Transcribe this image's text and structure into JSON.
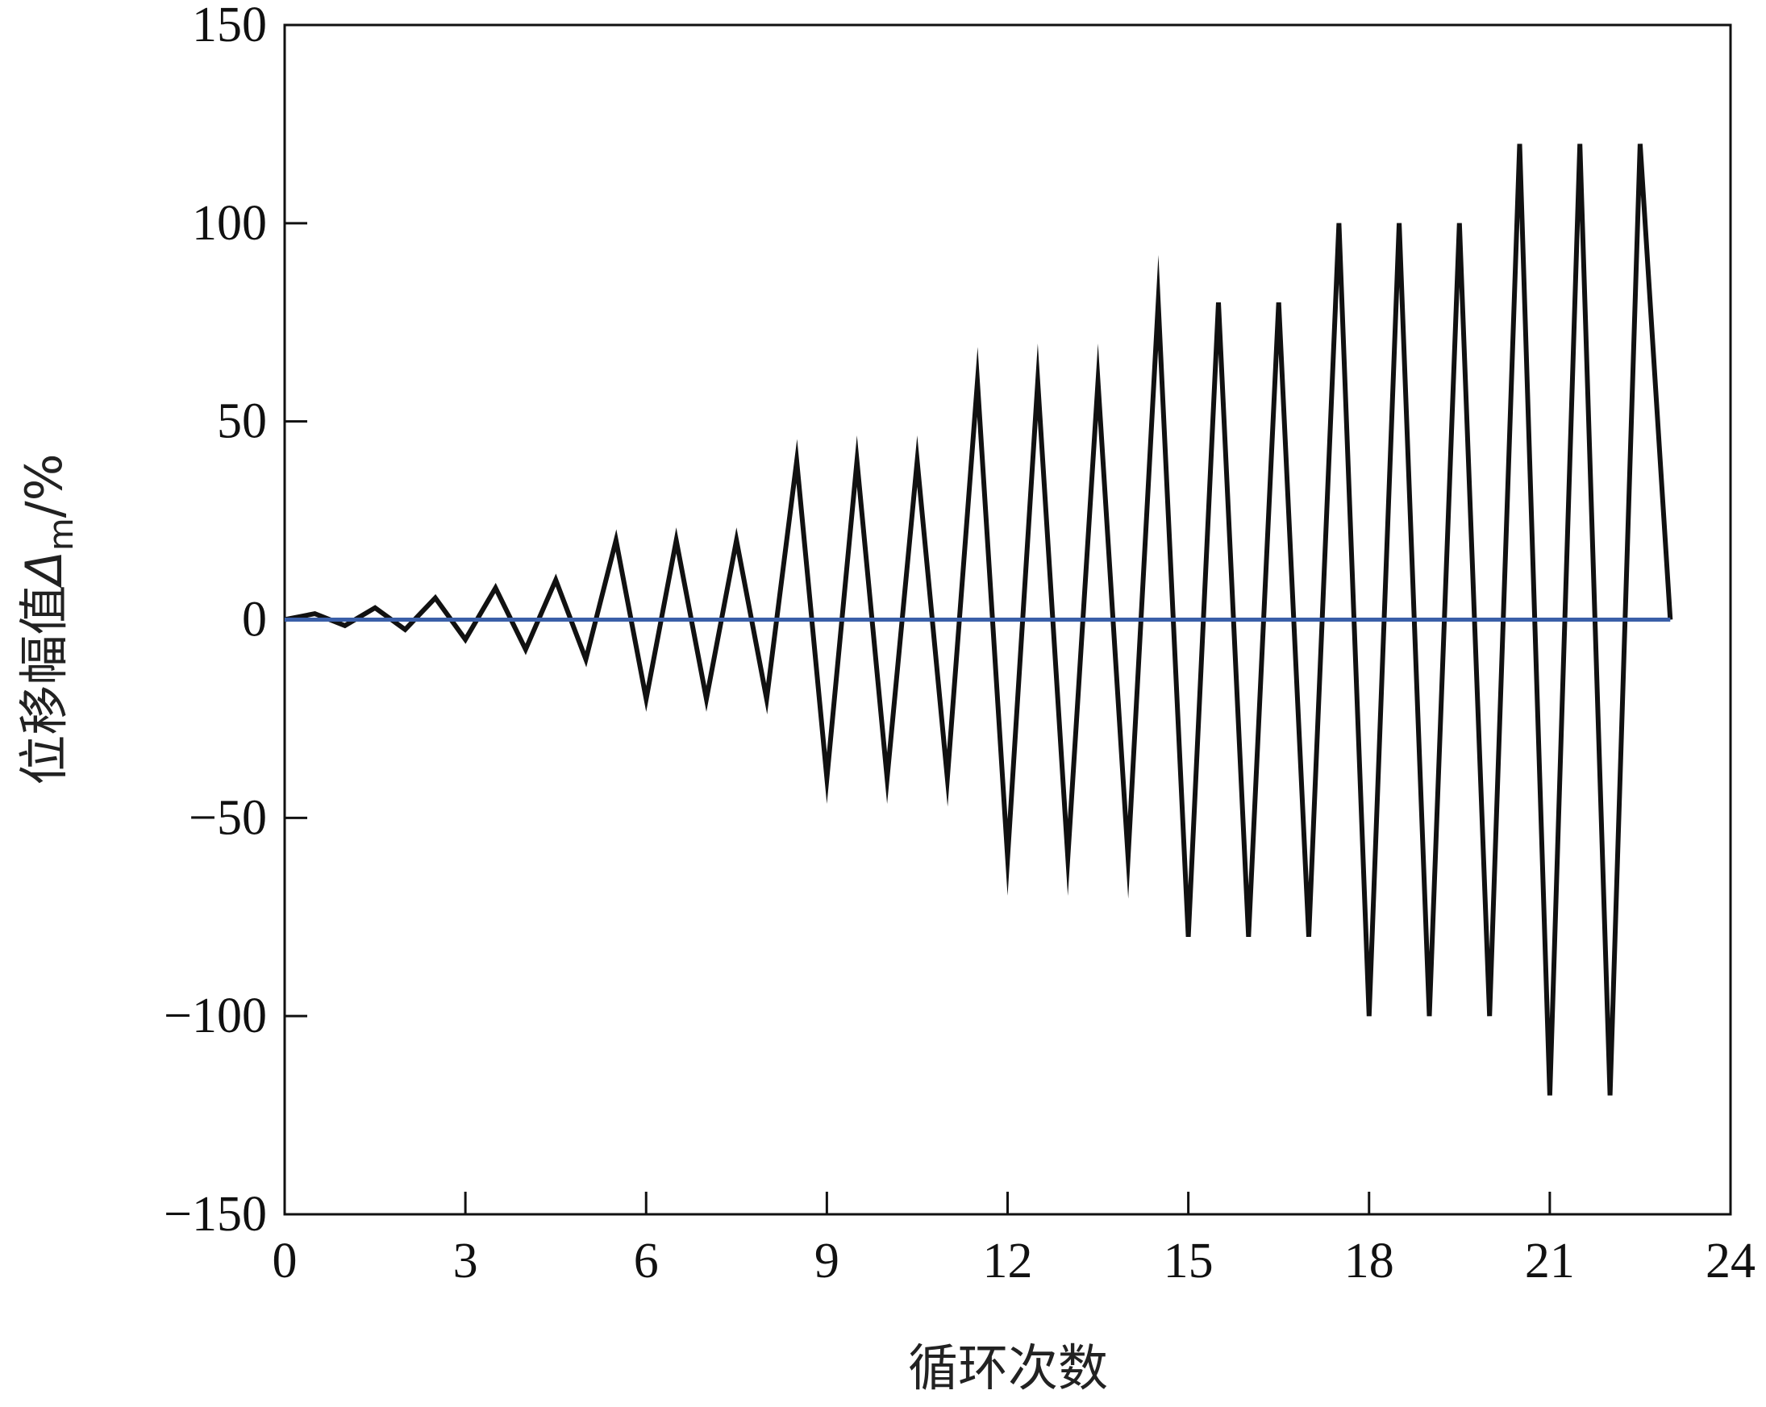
{
  "chart_data": {
    "type": "line",
    "title": "",
    "xlabel": "循环次数",
    "ylabel": {
      "text": "位移幅值",
      "symbol": "Δ",
      "subscript": "m",
      "unit": "/%"
    },
    "xlim": [
      0,
      24
    ],
    "ylim": [
      -150,
      150
    ],
    "xticks": [
      0,
      3,
      6,
      9,
      12,
      15,
      18,
      21,
      24
    ],
    "yticks": [
      -150,
      -100,
      -50,
      0,
      50,
      100,
      150
    ],
    "grid": false,
    "legend": "none",
    "series": [
      {
        "color": "#111111",
        "x": [
          0,
          0.5,
          1,
          1.5,
          2,
          2.5,
          3,
          3.5,
          4,
          4.5,
          5,
          5.5,
          6,
          6.5,
          7,
          7.5,
          8,
          8.5,
          9,
          9.5,
          10,
          10.5,
          11,
          11.5,
          12,
          12.5,
          13,
          13.5,
          14,
          14.5,
          15,
          15.5,
          16,
          16.5,
          17,
          17.5,
          18,
          18.5,
          19,
          19.5,
          20,
          20.5,
          21,
          21.5,
          22,
          22.5,
          23
        ],
        "y": [
          0,
          1.5,
          -1.5,
          3,
          -2.5,
          5.5,
          -5,
          8,
          -7.5,
          10,
          -10,
          20,
          -20,
          20,
          -20,
          20,
          -20,
          40,
          -40,
          40,
          -40,
          40,
          -40,
          60,
          -60,
          60,
          -60,
          60,
          -60,
          80,
          -80,
          80,
          -80,
          80,
          -80,
          100,
          -100,
          100,
          -100,
          100,
          -100,
          120,
          -120,
          120,
          -120,
          120,
          0
        ]
      },
      {
        "color": "#3a5fa8",
        "x": [
          0,
          23
        ],
        "y": [
          0,
          0
        ]
      }
    ]
  }
}
